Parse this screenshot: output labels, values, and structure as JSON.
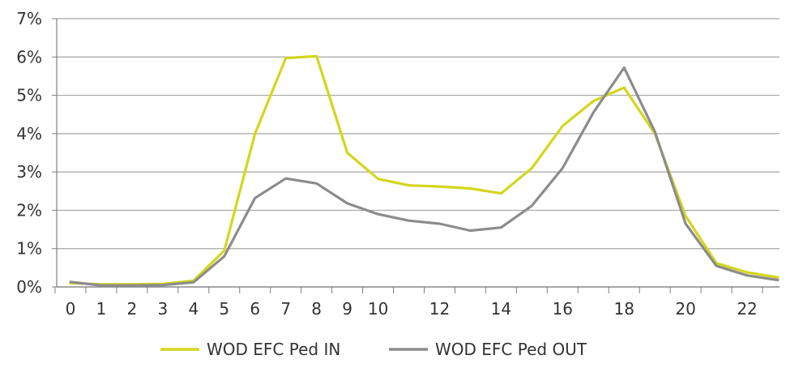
{
  "chart_data": {
    "type": "line",
    "title": "",
    "xlabel": "",
    "ylabel": "",
    "x": [
      0,
      1,
      2,
      3,
      4,
      5,
      6,
      7,
      8,
      9,
      10,
      11,
      12,
      13,
      14,
      15,
      16,
      17,
      18,
      19,
      20,
      21,
      22,
      23
    ],
    "x_tick_labels": [
      "0",
      "1",
      "2",
      "3",
      "4",
      "5",
      "6",
      "7",
      "8",
      "9",
      "10",
      "12",
      "14",
      "16",
      "18",
      "20",
      "22"
    ],
    "x_tick_values": [
      0,
      1,
      2,
      3,
      4,
      5,
      6,
      7,
      8,
      9,
      10,
      12,
      14,
      16,
      18,
      20,
      22
    ],
    "y_tick_labels": [
      "0%",
      "1%",
      "2%",
      "3%",
      "4%",
      "5%",
      "6%",
      "7%"
    ],
    "y_tick_values": [
      0,
      1,
      2,
      3,
      4,
      5,
      6,
      7
    ],
    "ylim": [
      0,
      7
    ],
    "unit": "%",
    "grid": "horizontal",
    "legend_position": "bottom",
    "series": [
      {
        "name": "WOD EFC Ped IN",
        "color": "#d4d61c",
        "values": [
          0.1,
          0.07,
          0.07,
          0.08,
          0.16,
          0.95,
          4.0,
          5.97,
          6.02,
          3.5,
          2.82,
          2.65,
          2.62,
          2.57,
          2.44,
          3.1,
          4.2,
          4.85,
          5.2,
          4.0,
          1.85,
          0.62,
          0.38,
          0.25
        ]
      },
      {
        "name": "WOD EFC Ped OUT",
        "color": "#8c8c8c",
        "values": [
          0.13,
          0.04,
          0.04,
          0.05,
          0.12,
          0.8,
          2.32,
          2.83,
          2.7,
          2.18,
          1.9,
          1.73,
          1.65,
          1.47,
          1.55,
          2.12,
          3.1,
          4.55,
          5.72,
          4.05,
          1.65,
          0.55,
          0.3,
          0.18
        ]
      }
    ]
  }
}
